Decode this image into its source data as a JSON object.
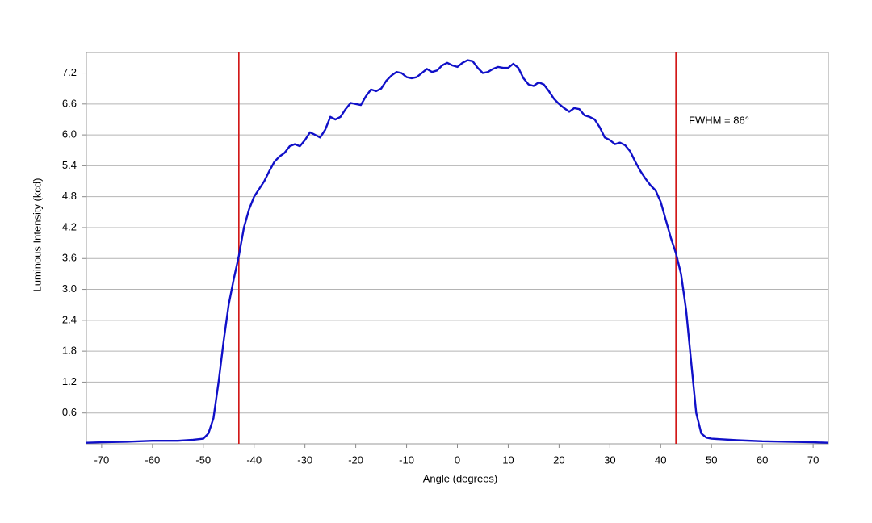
{
  "chart_data": {
    "type": "line",
    "x_label": "Angle (degrees)",
    "y_label": "Luminous Intensity (kcd)",
    "x": [
      -73,
      -70,
      -65,
      -60,
      -55,
      -52,
      -50,
      -49,
      -48,
      -47,
      -46,
      -45,
      -44,
      -43,
      -42,
      -41,
      -40,
      -39,
      -38,
      -37,
      -36,
      -35,
      -34,
      -33,
      -32,
      -31,
      -30,
      -29,
      -28,
      -27,
      -26,
      -25,
      -24,
      -23,
      -22,
      -21,
      -20,
      -19,
      -18,
      -17,
      -16,
      -15,
      -14,
      -13,
      -12,
      -11,
      -10,
      -9,
      -8,
      -7,
      -6,
      -5,
      -4,
      -3,
      -2,
      -1,
      0,
      1,
      2,
      3,
      4,
      5,
      6,
      7,
      8,
      9,
      10,
      11,
      12,
      13,
      14,
      15,
      16,
      17,
      18,
      19,
      20,
      21,
      22,
      23,
      24,
      25,
      26,
      27,
      28,
      29,
      30,
      31,
      32,
      33,
      34,
      35,
      36,
      37,
      38,
      39,
      40,
      41,
      42,
      43,
      44,
      45,
      46,
      47,
      48,
      49,
      50,
      55,
      60,
      65,
      70,
      73
    ],
    "values": [
      0.02,
      0.03,
      0.04,
      0.06,
      0.06,
      0.08,
      0.1,
      0.2,
      0.5,
      1.2,
      2.0,
      2.7,
      3.2,
      3.65,
      4.2,
      4.55,
      4.8,
      4.95,
      5.1,
      5.3,
      5.48,
      5.58,
      5.65,
      5.78,
      5.82,
      5.78,
      5.9,
      6.05,
      6.0,
      5.95,
      6.1,
      6.35,
      6.3,
      6.35,
      6.5,
      6.62,
      6.6,
      6.58,
      6.75,
      6.88,
      6.85,
      6.9,
      7.05,
      7.15,
      7.22,
      7.2,
      7.12,
      7.1,
      7.12,
      7.2,
      7.28,
      7.22,
      7.25,
      7.35,
      7.4,
      7.35,
      7.32,
      7.4,
      7.45,
      7.43,
      7.3,
      7.2,
      7.22,
      7.28,
      7.32,
      7.3,
      7.3,
      7.38,
      7.3,
      7.1,
      6.98,
      6.95,
      7.02,
      6.98,
      6.85,
      6.7,
      6.6,
      6.52,
      6.45,
      6.52,
      6.5,
      6.38,
      6.35,
      6.3,
      6.15,
      5.95,
      5.9,
      5.82,
      5.85,
      5.8,
      5.68,
      5.48,
      5.3,
      5.15,
      5.02,
      4.92,
      4.7,
      4.35,
      4.0,
      3.7,
      3.3,
      2.6,
      1.6,
      0.6,
      0.2,
      0.12,
      0.1,
      0.07,
      0.05,
      0.04,
      0.03,
      0.02
    ],
    "color": "#1010c8",
    "xlim": [
      -73,
      73
    ],
    "ylim": [
      0,
      7.6
    ],
    "xticks": [
      -70,
      -60,
      -50,
      -40,
      -30,
      -20,
      -10,
      0,
      10,
      20,
      30,
      40,
      50,
      60,
      70
    ],
    "yticks": [
      0.6,
      1.2,
      1.8,
      2.4,
      {
        "value": 3,
        "label": "3.0"
      },
      3.6,
      4.2,
      4.8,
      5.4,
      {
        "value": 6,
        "label": "6.0"
      },
      6.6,
      7.2
    ],
    "grid": true,
    "vlines": [
      -43,
      43
    ],
    "vline_color": "#d01010",
    "annotation": "FWHM = 86°"
  }
}
